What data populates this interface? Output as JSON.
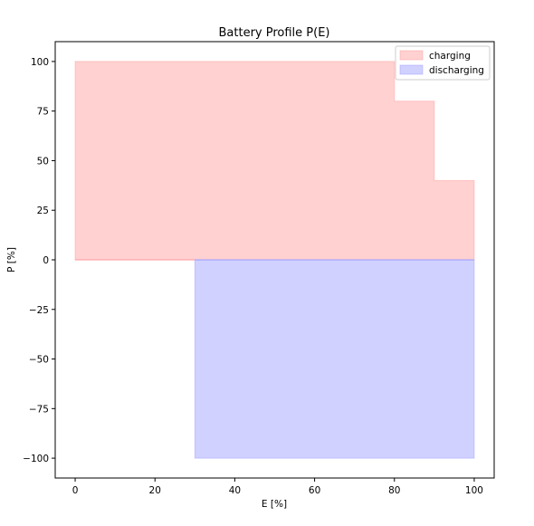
{
  "chart_data": {
    "type": "area",
    "title": "Battery Profile P(E)",
    "xlabel": "E [%]",
    "ylabel": "P [%]",
    "xlim": [
      -5,
      105
    ],
    "ylim": [
      -110,
      110
    ],
    "xticks": [
      0,
      20,
      40,
      60,
      80,
      100
    ],
    "xtick_labels": [
      "0",
      "20",
      "40",
      "60",
      "80",
      "100"
    ],
    "yticks": [
      100,
      75,
      50,
      25,
      0,
      -25,
      -50,
      -75,
      -100
    ],
    "ytick_labels": [
      "100",
      "75",
      "50",
      "25",
      "0",
      "−25",
      "−50",
      "−75",
      "−100"
    ],
    "grid": false,
    "legend_position": "top-right",
    "series": [
      {
        "name": "charging",
        "color": "#ff9999",
        "alpha": 0.45,
        "x": [
          0,
          80,
          80,
          90,
          90,
          100
        ],
        "y": [
          100,
          100,
          80,
          80,
          40,
          40
        ],
        "baseline": 0
      },
      {
        "name": "discharging",
        "color": "#9999ff",
        "alpha": 0.45,
        "x": [
          30,
          100
        ],
        "y": [
          -100,
          -100
        ],
        "baseline": 0
      }
    ]
  }
}
